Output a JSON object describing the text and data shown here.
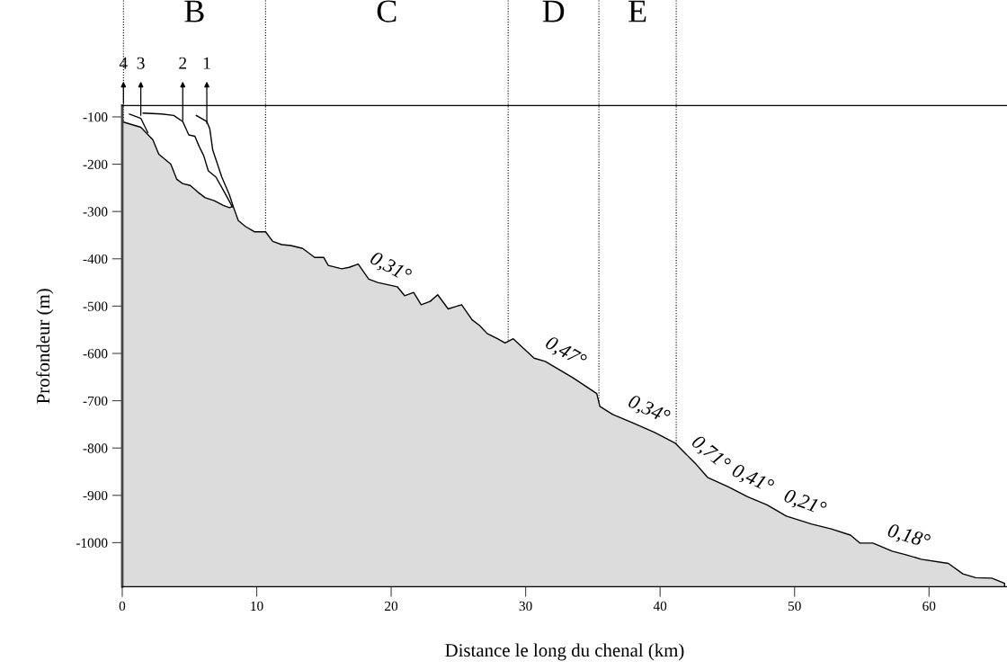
{
  "chart_data": {
    "type": "area",
    "xlabel": "Distance le long du chenal (km)",
    "ylabel": "Profondeur (m)",
    "xlim": [
      0,
      65.8
    ],
    "ylim": [
      -1093,
      -76
    ],
    "xticks": [
      0,
      10,
      20,
      30,
      40,
      50,
      60
    ],
    "yticks": [
      -1000,
      -900,
      -800,
      -700,
      -600,
      -500,
      -400,
      -300,
      -200,
      -100
    ],
    "grid": false,
    "series": [
      {
        "color": "#dcdcdc",
        "x": [
          0,
          0.09,
          1.38,
          2.27,
          2.72,
          3.61,
          4.06,
          4.49,
          5.06,
          5.62,
          6.17,
          6.84,
          7.51,
          7.96,
          8.25,
          8.63,
          9.18,
          9.85,
          10.66,
          11.19,
          11.86,
          12.53,
          13.42,
          14.31,
          14.98,
          15.32,
          16.32,
          16.88,
          17.55,
          18.33,
          19.0,
          20.45,
          21.0,
          21.67,
          22.23,
          22.9,
          23.46,
          24.24,
          25.24,
          26.02,
          26.58,
          27.14,
          27.91,
          28.47,
          29.08,
          30.63,
          31.46,
          33.5,
          35.29,
          35.52,
          36.48,
          37.92,
          39.6,
          41.14,
          42.7,
          43.53,
          45.08,
          46.51,
          47.95,
          49.39,
          51.3,
          52.73,
          54.16,
          54.87,
          55.83,
          57.26,
          58.22,
          59.42,
          61.44,
          62.52,
          63.48,
          64.67,
          65.62
        ],
        "values": [
          -106,
          -111,
          -122,
          -148,
          -179,
          -200,
          -232,
          -241,
          -245,
          -259,
          -271,
          -277,
          -287,
          -292,
          -289,
          -319,
          -332,
          -343,
          -343,
          -363,
          -370,
          -372,
          -378,
          -397,
          -397,
          -414,
          -421,
          -418,
          -411,
          -443,
          -450,
          -459,
          -478,
          -471,
          -497,
          -490,
          -476,
          -506,
          -497,
          -529,
          -541,
          -558,
          -569,
          -578,
          -569,
          -610,
          -617,
          -651,
          -685,
          -712,
          -729,
          -746,
          -767,
          -790,
          -835,
          -862,
          -882,
          -903,
          -920,
          -944,
          -961,
          -971,
          -984,
          -1001,
          -1001,
          -1018,
          -1025,
          -1035,
          -1044,
          -1066,
          -1074,
          -1075,
          -1086
        ]
      },
      {
        "type": "line",
        "color": "#000000",
        "x": [
          0.54,
          1.38,
          1.9
        ],
        "values": [
          -94,
          -103,
          -133
        ]
      },
      {
        "type": "line",
        "color": "#000000",
        "x": [
          1.56,
          2.94,
          3.83,
          4.5,
          4.95,
          5.4,
          5.73,
          6.06,
          6.4,
          6.96,
          7.4,
          7.96,
          8.18
        ],
        "values": [
          -92,
          -94,
          -97,
          -110,
          -138,
          -141,
          -163,
          -182,
          -214,
          -227,
          -249,
          -278,
          -290
        ]
      },
      {
        "type": "line",
        "color": "#000000",
        "x": [
          5.51,
          6.29,
          6.51,
          6.73,
          7.4,
          7.96,
          8.25
        ],
        "values": [
          -97,
          -110,
          -125,
          -170,
          -227,
          -264,
          -289
        ]
      }
    ],
    "ref_lines": [
      {
        "axis": "x",
        "value": 0.09,
        "line_style": "dotted",
        "color": "#000000"
      },
      {
        "axis": "x",
        "value": 10.66,
        "line_style": "dotted",
        "color": "#000000"
      },
      {
        "axis": "x",
        "value": 28.7,
        "line_style": "dotted",
        "color": "#000000"
      },
      {
        "axis": "x",
        "value": 35.45,
        "line_style": "dotted",
        "color": "#000000"
      },
      {
        "axis": "x",
        "value": 41.2,
        "line_style": "dotted",
        "color": "#000000"
      }
    ],
    "annotations": [
      "B",
      "C",
      "D",
      "E",
      {
        "text": "4",
        "x": 0.09,
        "y": -76
      },
      {
        "text": "3",
        "x": 1.38,
        "y": -102
      },
      {
        "text": "2",
        "x": 4.5,
        "y": -113
      },
      {
        "text": "1",
        "x": 6.29,
        "y": -119
      },
      {
        "text": "0,31°",
        "x": 19.3,
        "y": -452
      },
      {
        "text": "0,47°",
        "x": 32.3,
        "y": -631
      },
      {
        "text": "0,34°",
        "x": 38.6,
        "y": -754
      },
      {
        "text": "0,71°",
        "x": 42.9,
        "y": -841
      },
      {
        "text": "0,41°",
        "x": 46.3,
        "y": -900
      },
      {
        "text": "0,21°",
        "x": 50.3,
        "y": -952
      },
      {
        "text": "0,18°",
        "x": 58.1,
        "y": -1024
      }
    ]
  }
}
